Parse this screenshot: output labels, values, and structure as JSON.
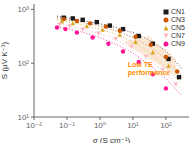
{
  "chart_data": {
    "type": "scatter",
    "xlabel": "σ (S cm⁻¹)",
    "ylabel": "S (μV K⁻¹)",
    "log": true,
    "grid": false,
    "legend": "upper right",
    "xlim": [
      0.01,
      501.18723362727224
    ],
    "ylim": [
      10,
      1258.9254117941673
    ],
    "xticks": [
      {
        "value": 0.01,
        "label": "10⁻²"
      },
      {
        "value": 0.1,
        "label": "10⁻¹"
      },
      {
        "value": 1,
        "label": "10⁰"
      },
      {
        "value": 10,
        "label": "10¹"
      },
      {
        "value": 100,
        "label": "10²"
      }
    ],
    "yticks": [
      {
        "value": 10,
        "label": "10¹"
      },
      {
        "value": 100,
        "label": "10²"
      },
      {
        "value": 1000,
        "label": "10³"
      }
    ],
    "annotations": [
      {
        "text": "Low TE\nperformance",
        "x": 7,
        "y": 82,
        "color": "#FF8C00"
      }
    ],
    "shaded_region": {
      "x": [
        5,
        200,
        200,
        30
      ],
      "y": [
        250,
        60,
        120,
        320
      ],
      "color": "#f5c9a0"
    },
    "series": [
      {
        "name": "CN1",
        "color": "#1a1a1a",
        "marker": "square",
        "line_style": "dotted",
        "scatter_x": [
          0.08,
          0.15,
          0.3,
          0.8,
          2.0,
          5.0,
          15,
          40,
          120,
          250
        ],
        "scatter_y": [
          700,
          680,
          640,
          580,
          500,
          430,
          320,
          230,
          120,
          55
        ],
        "line_x": [
          0.05,
          0.1,
          0.3,
          1,
          3,
          10,
          30,
          100,
          300
        ],
        "line_y": [
          750,
          700,
          620,
          540,
          460,
          370,
          270,
          170,
          80
        ]
      },
      {
        "name": "CN3",
        "color": "#cc5500",
        "marker": "circle",
        "line_style": "dotted",
        "scatter_x": [
          0.08,
          0.2,
          0.5,
          1.5,
          4,
          12,
          35,
          100,
          220
        ],
        "scatter_y": [
          660,
          610,
          550,
          480,
          400,
          310,
          220,
          130,
          70
        ],
        "line_x": [
          0.05,
          0.1,
          0.3,
          1,
          3,
          10,
          30,
          100,
          300
        ],
        "line_y": [
          700,
          650,
          570,
          490,
          400,
          300,
          210,
          120,
          60
        ]
      },
      {
        "name": "CN5",
        "color": "#DAA520",
        "marker": "triangle_up",
        "line_style": "dotted",
        "scatter_x": [
          0.07,
          0.15,
          0.4,
          1.2,
          4,
          12,
          40,
          120
        ],
        "scatter_y": [
          600,
          555,
          490,
          420,
          340,
          250,
          160,
          90
        ],
        "line_x": [
          0.05,
          0.1,
          0.3,
          1,
          3,
          10,
          30,
          100,
          300
        ],
        "line_y": [
          640,
          595,
          515,
          435,
          345,
          250,
          160,
          85,
          42
        ]
      },
      {
        "name": "CN7",
        "color": "#FFB6C1",
        "marker": "triangle_down",
        "line_style": "dotted",
        "scatter_x": [
          0.06,
          0.12,
          0.3,
          0.9,
          3,
          9,
          25,
          80,
          200
        ],
        "scatter_y": [
          520,
          480,
          420,
          355,
          280,
          200,
          130,
          75,
          40
        ],
        "line_x": [
          0.05,
          0.1,
          0.3,
          1,
          3,
          10,
          30,
          100,
          300
        ],
        "line_y": [
          550,
          505,
          430,
          355,
          275,
          190,
          120,
          65,
          32
        ]
      },
      {
        "name": "CN9",
        "color": "#FF1493",
        "marker": "circle",
        "line_style": "dotted",
        "scatter_x": [
          0.05,
          0.09,
          0.2,
          0.6,
          1.8,
          5,
          15,
          40,
          100
        ],
        "scatter_y": [
          460,
          430,
          370,
          300,
          230,
          165,
          105,
          62,
          34
        ],
        "line_x": [
          0.05,
          0.1,
          0.3,
          1,
          3,
          10,
          30,
          100,
          300
        ],
        "line_y": [
          480,
          440,
          375,
          300,
          225,
          155,
          95,
          52,
          25
        ]
      }
    ]
  }
}
